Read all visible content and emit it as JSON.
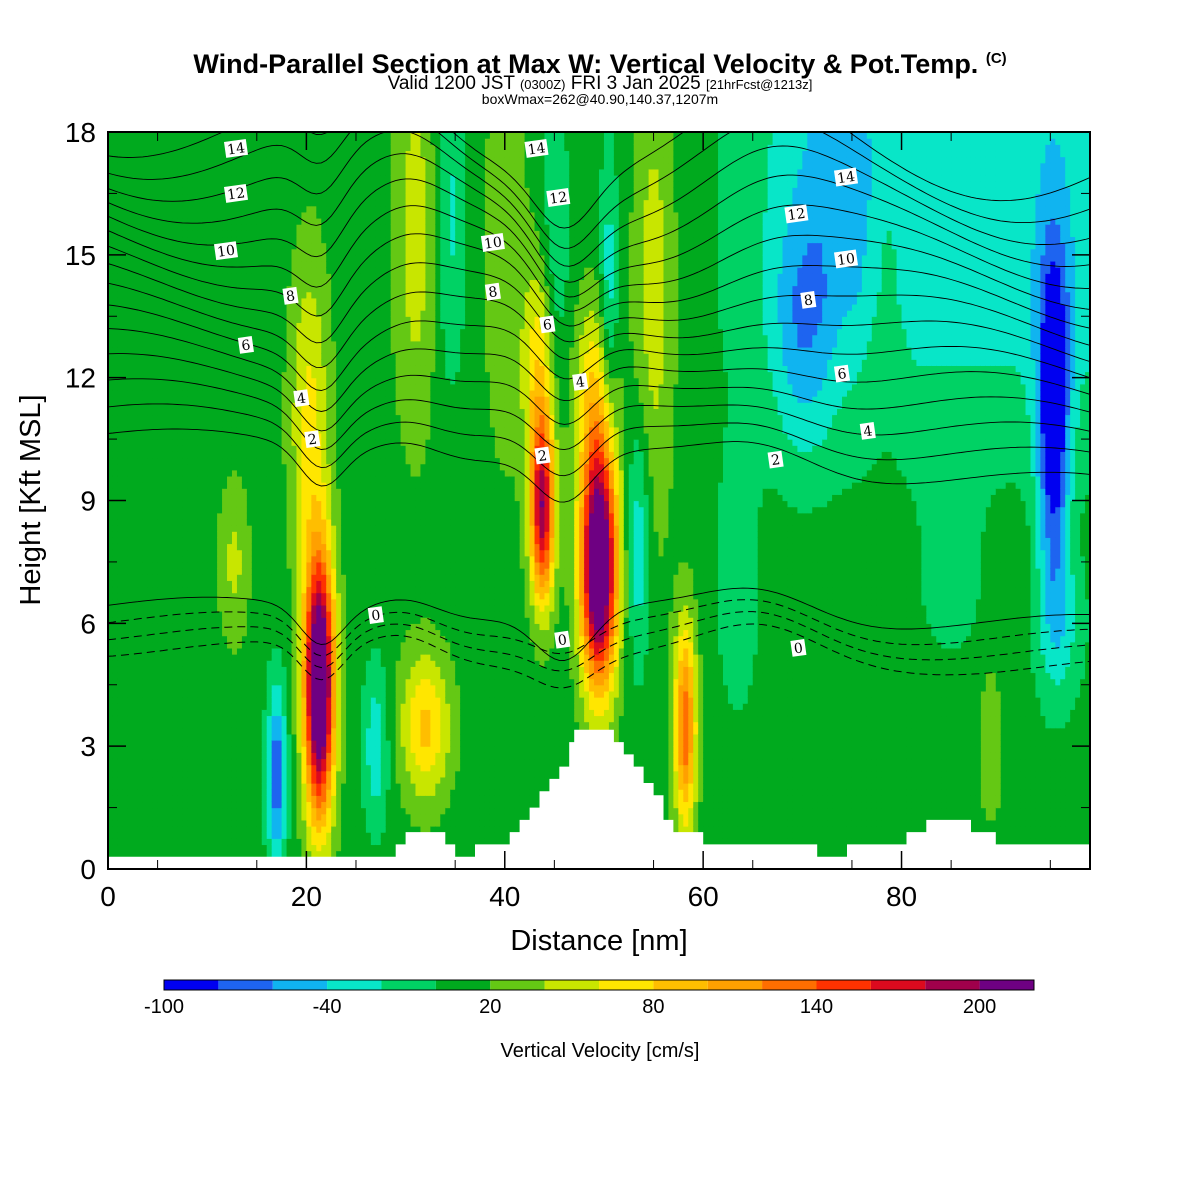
{
  "header": {
    "title": "Wind-Parallel Section at Max W: Vertical Velocity & Pot.Temp.",
    "title_mark": "(C)",
    "valid_a": "Valid 1200 JST",
    "valid_b": "(0300Z)",
    "valid_c": "FRI 3 Jan 2025",
    "valid_d": "[21hrFcst@1213z]",
    "boxwmax": "boxWmax=262@40.90,140.37,1207m"
  },
  "chart_data": {
    "type": "heatmap",
    "xlabel": "Distance [nm]",
    "ylabel": "Height [Kft MSL]",
    "xlim": [
      0,
      99
    ],
    "ylim": [
      0,
      18
    ],
    "xticks": [
      0,
      20,
      40,
      60,
      80
    ],
    "yticks": [
      0,
      3,
      6,
      9,
      12,
      15,
      18
    ],
    "colorbar": {
      "title": "Vertical Velocity [cm/s]",
      "min": -100,
      "max": 220,
      "tick_values": [
        -100,
        -40,
        20,
        80,
        140,
        200
      ],
      "tick_labels": [
        "-100",
        "-40",
        "20",
        "80",
        "140",
        "200"
      ],
      "colors": [
        "#0000f0",
        "#1e64f0",
        "#10b4f0",
        "#08e6c8",
        "#00d264",
        "#00aa1e",
        "#64c814",
        "#c8e600",
        "#ffe600",
        "#ffbe00",
        "#ffa000",
        "#ff6e00",
        "#ff3200",
        "#dc0a1e",
        "#a0004b",
        "#6e0082"
      ]
    },
    "updraft_cores_w": [
      {
        "x": 21.3,
        "y": 4.5,
        "w": 260
      },
      {
        "x": 43.8,
        "y": 8.7,
        "w": 175
      },
      {
        "x": 49.5,
        "y": 7.4,
        "w": 262
      },
      {
        "x": 58.2,
        "y": 3.5,
        "w": 130
      },
      {
        "x": 32.0,
        "y": 3.5,
        "w": 85
      }
    ],
    "downdraft_cores_w": [
      {
        "x": 17.0,
        "y": 2.3,
        "w": -70
      },
      {
        "x": 95.3,
        "y": 11.0,
        "w": -95
      },
      {
        "x": 50.5,
        "y": 14.0,
        "w": -60
      }
    ],
    "theta_contour_labels": [
      {
        "x": 12.9,
        "y": 17.6,
        "text": "14"
      },
      {
        "x": 12.9,
        "y": 16.5,
        "text": "12"
      },
      {
        "x": 11.9,
        "y": 15.1,
        "text": "10"
      },
      {
        "x": 18.4,
        "y": 14.0,
        "text": "8"
      },
      {
        "x": 13.9,
        "y": 12.8,
        "text": "6"
      },
      {
        "x": 19.5,
        "y": 11.5,
        "text": "4"
      },
      {
        "x": 20.6,
        "y": 10.5,
        "text": "2"
      },
      {
        "x": 27.0,
        "y": 6.2,
        "text": "0"
      },
      {
        "x": 43.2,
        "y": 17.6,
        "text": "14"
      },
      {
        "x": 45.4,
        "y": 16.4,
        "text": "12"
      },
      {
        "x": 38.8,
        "y": 15.3,
        "text": "10"
      },
      {
        "x": 38.8,
        "y": 14.1,
        "text": "8"
      },
      {
        "x": 44.3,
        "y": 13.3,
        "text": "6"
      },
      {
        "x": 47.6,
        "y": 11.9,
        "text": "4"
      },
      {
        "x": 43.8,
        "y": 10.1,
        "text": "2"
      },
      {
        "x": 45.8,
        "y": 5.6,
        "text": "0"
      },
      {
        "x": 74.4,
        "y": 16.9,
        "text": "14"
      },
      {
        "x": 69.4,
        "y": 16.0,
        "text": "12"
      },
      {
        "x": 74.4,
        "y": 14.9,
        "text": "10"
      },
      {
        "x": 70.6,
        "y": 13.9,
        "text": "8"
      },
      {
        "x": 74.0,
        "y": 12.1,
        "text": "6"
      },
      {
        "x": 76.6,
        "y": 10.7,
        "text": "4"
      },
      {
        "x": 67.3,
        "y": 10.0,
        "text": "2"
      },
      {
        "x": 69.6,
        "y": 5.4,
        "text": "0"
      }
    ],
    "terrain_kft": [
      {
        "x": 0,
        "h": 0.3
      },
      {
        "x": 28,
        "h": 0.3
      },
      {
        "x": 29,
        "h": 0.6
      },
      {
        "x": 30,
        "h": 0.9
      },
      {
        "x": 33,
        "h": 0.9
      },
      {
        "x": 34,
        "h": 0.6
      },
      {
        "x": 35,
        "h": 0.3
      },
      {
        "x": 36.5,
        "h": 0.3
      },
      {
        "x": 37,
        "h": 0.6
      },
      {
        "x": 40,
        "h": 0.6
      },
      {
        "x": 40.5,
        "h": 0.9
      },
      {
        "x": 41.5,
        "h": 1.2
      },
      {
        "x": 42.5,
        "h": 1.5
      },
      {
        "x": 43.5,
        "h": 1.9
      },
      {
        "x": 44.5,
        "h": 2.2
      },
      {
        "x": 45.5,
        "h": 2.5
      },
      {
        "x": 46.5,
        "h": 3.1
      },
      {
        "x": 47,
        "h": 3.4
      },
      {
        "x": 50,
        "h": 3.4
      },
      {
        "x": 51,
        "h": 3.1
      },
      {
        "x": 52,
        "h": 2.8
      },
      {
        "x": 53,
        "h": 2.5
      },
      {
        "x": 54,
        "h": 2.1
      },
      {
        "x": 55,
        "h": 1.8
      },
      {
        "x": 56,
        "h": 1.2
      },
      {
        "x": 57,
        "h": 0.9
      },
      {
        "x": 60,
        "h": 0.6
      },
      {
        "x": 71,
        "h": 0.6
      },
      {
        "x": 71.5,
        "h": 0.3
      },
      {
        "x": 74,
        "h": 0.3
      },
      {
        "x": 74.5,
        "h": 0.6
      },
      {
        "x": 80,
        "h": 0.6
      },
      {
        "x": 80.5,
        "h": 0.9
      },
      {
        "x": 82,
        "h": 0.9
      },
      {
        "x": 82.5,
        "h": 1.2
      },
      {
        "x": 86.5,
        "h": 1.2
      },
      {
        "x": 87,
        "h": 0.9
      },
      {
        "x": 89,
        "h": 0.9
      },
      {
        "x": 89.5,
        "h": 0.6
      },
      {
        "x": 99,
        "h": 0.6
      }
    ]
  }
}
